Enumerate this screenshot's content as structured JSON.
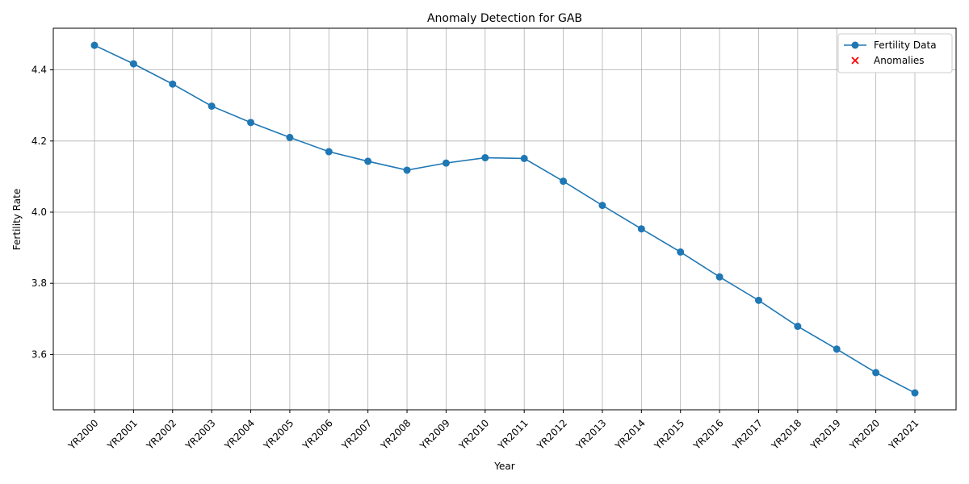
{
  "colors": {
    "series": "#1f77b4",
    "anomaly": "#ff0000",
    "grid": "#b0b0b0",
    "axis": "#000000",
    "background": "#ffffff"
  },
  "chart_data": {
    "type": "line",
    "title": "Anomaly Detection for GAB",
    "xlabel": "Year",
    "ylabel": "Fertility Rate",
    "categories": [
      "YR2000",
      "YR2001",
      "YR2002",
      "YR2003",
      "YR2004",
      "YR2005",
      "YR2006",
      "YR2007",
      "YR2008",
      "YR2009",
      "YR2010",
      "YR2011",
      "YR2012",
      "YR2013",
      "YR2014",
      "YR2015",
      "YR2016",
      "YR2017",
      "YR2018",
      "YR2019",
      "YR2020",
      "YR2021"
    ],
    "series": [
      {
        "name": "Fertility Data",
        "marker": "circle",
        "values": [
          4.469,
          4.417,
          4.36,
          4.298,
          4.252,
          4.21,
          4.17,
          4.143,
          4.118,
          4.138,
          4.153,
          4.151,
          4.087,
          4.019,
          3.953,
          3.888,
          3.818,
          3.752,
          3.679,
          3.615,
          3.549,
          3.492
        ]
      },
      {
        "name": "Anomalies",
        "marker": "x",
        "points": []
      }
    ],
    "ylim": [
      3.5,
      4.5
    ],
    "yticks": [
      3.6,
      3.8,
      4.0,
      4.2,
      4.4
    ],
    "grid": true,
    "legend_position": "top-right"
  }
}
